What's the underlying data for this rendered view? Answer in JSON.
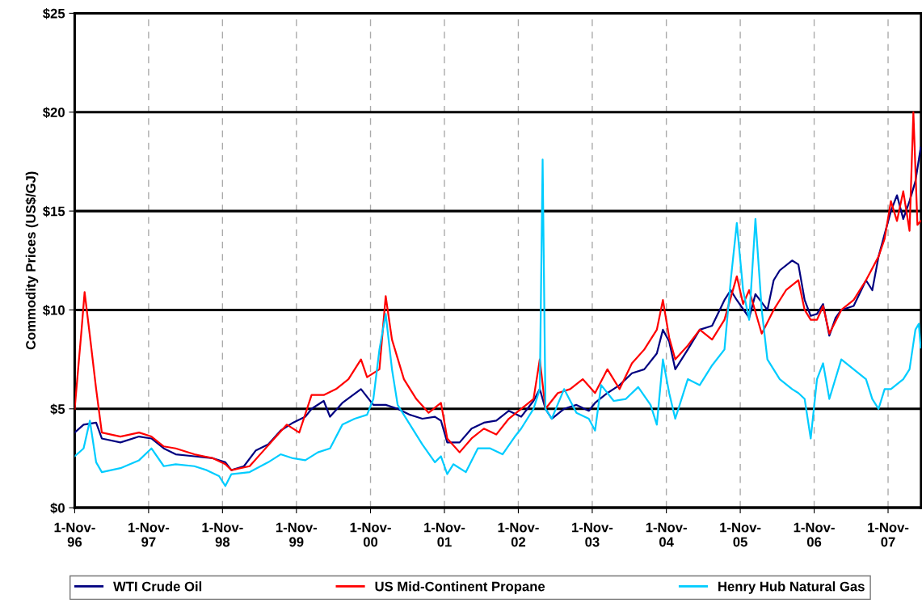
{
  "chart_data": {
    "type": "line",
    "ylabel": "Commodity Prices (US$/GJ)",
    "xlim": [
      "1996-11-01",
      "2008-04-12"
    ],
    "xticks": [
      {
        "value": "1996-11-01",
        "label": "1-Nov-\n96"
      },
      {
        "value": "1997-11-01",
        "label": "1-Nov-\n97"
      },
      {
        "value": "1998-11-01",
        "label": "1-Nov-\n98"
      },
      {
        "value": "1999-11-01",
        "label": "1-Nov-\n99"
      },
      {
        "value": "2000-11-01",
        "label": "1-Nov-\n00"
      },
      {
        "value": "2001-11-01",
        "label": "1-Nov-\n01"
      },
      {
        "value": "2002-11-01",
        "label": "1-Nov-\n02"
      },
      {
        "value": "2003-11-01",
        "label": "1-Nov-\n03"
      },
      {
        "value": "2004-11-01",
        "label": "1-Nov-\n04"
      },
      {
        "value": "2005-11-01",
        "label": "1-Nov-\n05"
      },
      {
        "value": "2006-11-01",
        "label": "1-Nov-\n06"
      },
      {
        "value": "2007-11-01",
        "label": "1-Nov-\n07"
      }
    ],
    "ylim": [
      0,
      25
    ],
    "yticks": [
      {
        "value": 0,
        "label": "$0"
      },
      {
        "value": 5,
        "label": "$5"
      },
      {
        "value": 10,
        "label": "$10"
      },
      {
        "value": 15,
        "label": "$15"
      },
      {
        "value": 20,
        "label": "$20"
      },
      {
        "value": 25,
        "label": "$25"
      }
    ],
    "grid": true,
    "legend": "bottom",
    "line_style": "solid",
    "marker": "none",
    "series": [
      {
        "name": "WTI Crude Oil",
        "color": "#000080",
        "x": [
          "1996-11-01",
          "1996-12-15",
          "1997-02-15",
          "1997-03-15",
          "1997-06-15",
          "1997-09-15",
          "1997-11-15",
          "1998-01-15",
          "1998-03-15",
          "1998-06-15",
          "1998-09-15",
          "1998-11-15",
          "1998-12-15",
          "1999-02-15",
          "1999-04-15",
          "1999-06-15",
          "1999-08-15",
          "1999-10-15",
          "1999-12-15",
          "2000-01-15",
          "2000-03-15",
          "2000-04-15",
          "2000-06-15",
          "2000-09-15",
          "2000-11-15",
          "2001-01-15",
          "2001-03-15",
          "2001-05-15",
          "2001-07-15",
          "2001-09-15",
          "2001-10-15",
          "2001-11-15",
          "2002-01-15",
          "2002-03-15",
          "2002-05-15",
          "2002-07-15",
          "2002-09-15",
          "2002-11-15",
          "2003-01-15",
          "2003-02-15",
          "2003-03-15",
          "2003-04-15",
          "2003-06-15",
          "2003-08-15",
          "2003-10-15",
          "2003-11-15",
          "2004-01-15",
          "2004-03-15",
          "2004-05-15",
          "2004-07-15",
          "2004-09-15",
          "2004-10-15",
          "2004-11-15",
          "2004-12-15",
          "2005-02-15",
          "2005-04-15",
          "2005-06-15",
          "2005-08-15",
          "2005-09-15",
          "2005-10-15",
          "2005-12-15",
          "2006-01-15",
          "2006-03-15",
          "2006-04-15",
          "2006-05-15",
          "2006-07-15",
          "2006-08-15",
          "2006-09-15",
          "2006-10-15",
          "2006-11-15",
          "2006-12-15",
          "2007-01-15",
          "2007-02-15",
          "2007-03-15",
          "2007-05-15",
          "2007-07-15",
          "2007-08-15",
          "2007-09-15",
          "2007-11-15",
          "2007-12-15",
          "2008-01-15",
          "2008-02-15",
          "2008-03-15",
          "2008-04-10"
        ],
        "values": [
          3.8,
          4.2,
          4.3,
          3.5,
          3.3,
          3.6,
          3.5,
          3.0,
          2.7,
          2.6,
          2.5,
          2.3,
          1.9,
          2.1,
          2.9,
          3.2,
          3.9,
          4.3,
          4.6,
          5.0,
          5.4,
          4.6,
          5.3,
          6.0,
          5.2,
          5.2,
          5.0,
          4.7,
          4.5,
          4.6,
          4.4,
          3.3,
          3.3,
          4.0,
          4.3,
          4.4,
          4.9,
          4.6,
          5.4,
          6.0,
          5.0,
          4.5,
          5.0,
          5.2,
          4.9,
          5.3,
          5.8,
          6.2,
          6.8,
          7.0,
          7.8,
          9.0,
          8.4,
          7.0,
          8.0,
          9.0,
          9.2,
          10.5,
          11.0,
          10.5,
          9.6,
          10.8,
          10.0,
          11.5,
          12.0,
          12.5,
          12.3,
          10.5,
          9.7,
          9.8,
          10.3,
          8.7,
          9.6,
          10.0,
          10.2,
          11.5,
          11.0,
          12.7,
          15.0,
          15.8,
          14.6,
          15.5,
          16.5,
          18.2
        ]
      },
      {
        "name": "US Mid-Continent Propane",
        "color": "#ff0000",
        "x": [
          "1996-11-01",
          "1996-12-05",
          "1996-12-20",
          "1997-01-15",
          "1997-02-15",
          "1997-03-15",
          "1997-06-15",
          "1997-09-15",
          "1997-11-15",
          "1998-01-15",
          "1998-03-15",
          "1998-06-15",
          "1998-09-15",
          "1998-11-15",
          "1998-12-15",
          "1999-03-15",
          "1999-05-15",
          "1999-07-15",
          "1999-09-15",
          "1999-11-15",
          "2000-01-15",
          "2000-03-15",
          "2000-05-15",
          "2000-07-15",
          "2000-09-15",
          "2000-10-15",
          "2000-12-15",
          "2001-01-15",
          "2001-02-15",
          "2001-04-15",
          "2001-06-15",
          "2001-08-15",
          "2001-10-15",
          "2001-11-15",
          "2002-01-15",
          "2002-03-15",
          "2002-05-15",
          "2002-07-15",
          "2002-09-15",
          "2002-11-15",
          "2003-01-15",
          "2003-02-15",
          "2003-03-15",
          "2003-05-15",
          "2003-07-15",
          "2003-09-15",
          "2003-11-15",
          "2004-01-15",
          "2004-03-15",
          "2004-05-15",
          "2004-07-15",
          "2004-09-15",
          "2004-10-15",
          "2004-11-15",
          "2004-12-15",
          "2005-02-15",
          "2005-04-15",
          "2005-06-15",
          "2005-08-15",
          "2005-10-15",
          "2005-11-15",
          "2005-12-15",
          "2006-02-15",
          "2006-04-15",
          "2006-06-15",
          "2006-08-15",
          "2006-09-15",
          "2006-10-15",
          "2006-11-15",
          "2006-12-15",
          "2007-01-15",
          "2007-03-15",
          "2007-05-15",
          "2007-07-15",
          "2007-09-15",
          "2007-10-15",
          "2007-11-15",
          "2007-12-15",
          "2008-01-15",
          "2008-02-15",
          "2008-03-05",
          "2008-03-25",
          "2008-04-10"
        ],
        "values": [
          5.0,
          9.0,
          10.9,
          8.7,
          6.0,
          3.8,
          3.6,
          3.8,
          3.6,
          3.1,
          3.0,
          2.7,
          2.5,
          2.2,
          1.9,
          2.1,
          2.8,
          3.5,
          4.2,
          3.8,
          5.7,
          5.7,
          6.0,
          6.5,
          7.5,
          6.6,
          7.0,
          10.7,
          8.5,
          6.5,
          5.5,
          4.8,
          5.3,
          3.5,
          2.8,
          3.5,
          4.0,
          3.7,
          4.5,
          5.0,
          5.5,
          7.5,
          5.0,
          5.8,
          6.0,
          6.5,
          5.8,
          7.0,
          6.0,
          7.3,
          8.0,
          9.0,
          10.5,
          8.6,
          7.5,
          8.2,
          9.0,
          8.5,
          9.5,
          11.7,
          10.3,
          11.0,
          8.8,
          10.0,
          11.0,
          11.5,
          10.0,
          9.5,
          9.5,
          10.2,
          8.8,
          10.0,
          10.5,
          11.5,
          12.7,
          13.6,
          15.5,
          14.5,
          16.0,
          14.0,
          20.0,
          14.3,
          14.5
        ]
      },
      {
        "name": "Henry Hub Natural Gas",
        "color": "#00ccff",
        "x": [
          "1996-11-01",
          "1996-12-15",
          "1997-01-15",
          "1997-02-15",
          "1997-03-15",
          "1997-06-15",
          "1997-09-15",
          "1997-11-15",
          "1998-01-15",
          "1998-03-15",
          "1998-06-15",
          "1998-08-15",
          "1998-10-15",
          "1998-11-15",
          "1998-12-15",
          "1999-03-15",
          "1999-06-15",
          "1999-08-15",
          "1999-10-15",
          "1999-12-15",
          "2000-02-15",
          "2000-04-15",
          "2000-06-15",
          "2000-08-15",
          "2000-10-15",
          "2000-11-15",
          "2000-12-15",
          "2001-01-15",
          "2001-02-15",
          "2001-03-15",
          "2001-05-15",
          "2001-07-15",
          "2001-09-15",
          "2001-10-15",
          "2001-11-15",
          "2001-12-15",
          "2002-02-15",
          "2002-04-15",
          "2002-06-15",
          "2002-08-15",
          "2002-10-15",
          "2002-11-15",
          "2003-01-15",
          "2003-02-15",
          "2003-03-01",
          "2003-03-15",
          "2003-04-15",
          "2003-06-15",
          "2003-08-15",
          "2003-10-15",
          "2003-11-15",
          "2003-12-15",
          "2004-02-15",
          "2004-04-15",
          "2004-06-15",
          "2004-08-15",
          "2004-09-15",
          "2004-10-15",
          "2004-11-15",
          "2004-12-15",
          "2005-02-15",
          "2005-04-15",
          "2005-06-15",
          "2005-08-15",
          "2005-09-15",
          "2005-10-15",
          "2005-11-15",
          "2005-12-15",
          "2006-01-15",
          "2006-02-15",
          "2006-03-15",
          "2006-05-15",
          "2006-07-15",
          "2006-08-15",
          "2006-09-15",
          "2006-10-15",
          "2006-11-15",
          "2006-12-15",
          "2007-01-15",
          "2007-03-15",
          "2007-05-15",
          "2007-07-15",
          "2007-08-15",
          "2007-09-15",
          "2007-10-15",
          "2007-11-15",
          "2008-01-15",
          "2008-02-15",
          "2008-03-15",
          "2008-04-01",
          "2008-04-10"
        ],
        "values": [
          2.6,
          3.0,
          4.4,
          2.3,
          1.8,
          2.0,
          2.4,
          3.0,
          2.1,
          2.2,
          2.1,
          1.9,
          1.6,
          1.1,
          1.7,
          1.8,
          2.3,
          2.7,
          2.5,
          2.4,
          2.8,
          3.0,
          4.2,
          4.5,
          4.7,
          5.5,
          8.0,
          9.8,
          7.0,
          5.2,
          4.2,
          3.2,
          2.3,
          2.6,
          1.7,
          2.2,
          1.8,
          3.0,
          3.0,
          2.7,
          3.6,
          4.0,
          5.0,
          6.0,
          17.6,
          5.0,
          4.5,
          6.0,
          4.8,
          4.5,
          3.9,
          6.2,
          5.4,
          5.5,
          6.1,
          5.2,
          4.2,
          7.5,
          5.8,
          4.5,
          6.5,
          6.2,
          7.2,
          8.0,
          11.5,
          14.4,
          11.0,
          9.5,
          14.6,
          10.0,
          7.5,
          6.5,
          6.0,
          5.8,
          5.5,
          3.5,
          6.5,
          7.3,
          5.5,
          7.5,
          7.0,
          6.5,
          5.5,
          5.0,
          6.0,
          6.0,
          6.5,
          7.0,
          9.0,
          9.3,
          8.1
        ]
      }
    ]
  }
}
